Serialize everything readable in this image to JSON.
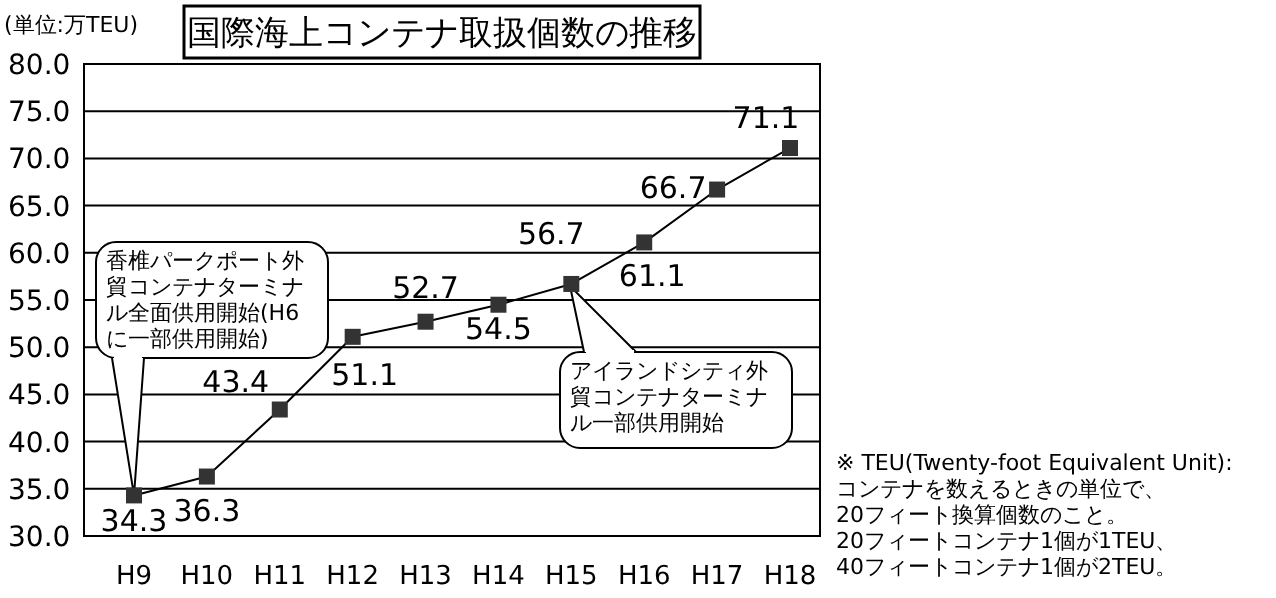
{
  "chart_data": {
    "type": "line",
    "title": "国際海上コンテナ取扱個数の推移",
    "ylabel": "(単位:万TEU)",
    "categories": [
      "H9",
      "H10",
      "H11",
      "H12",
      "H13",
      "H14",
      "H15",
      "H16",
      "H17",
      "H18"
    ],
    "values": [
      34.3,
      36.3,
      43.4,
      51.1,
      52.7,
      54.5,
      56.7,
      61.1,
      66.7,
      71.1
    ],
    "color": "#000000",
    "marker": "square",
    "data_labels": true,
    "grid": "y",
    "ylim": [
      30,
      80
    ],
    "yticks": [
      {
        "value": 30,
        "label": "30.0"
      },
      {
        "value": 35,
        "label": "35.0"
      },
      {
        "value": 40,
        "label": "40.0"
      },
      {
        "value": 45,
        "label": "45.0"
      },
      {
        "value": 50,
        "label": "50.0"
      },
      {
        "value": 55,
        "label": "55.0"
      },
      {
        "value": 60,
        "label": "60.0"
      },
      {
        "value": 65,
        "label": "65.0"
      },
      {
        "value": 70,
        "label": "70.0"
      },
      {
        "value": 75,
        "label": "75.0"
      },
      {
        "value": 80,
        "label": "80.0"
      }
    ],
    "annotations": [
      {
        "text": "香椎パークポート外貿コンテナターミナル全面供用開始(H6に一部供用開始)",
        "x": "H9",
        "y": 34.3
      },
      "アイランドシティ外貿コンテナターミナル一部供用開始",
      "※ TEU(Twenty-foot Equivalent Unit):\nコンテナを数えるときの単位で、\n20フィート換算個数のこと。\n20フィートコンテナ1個が1TEU、\n40フィートコンテナ1個が2TEU。"
    ]
  }
}
